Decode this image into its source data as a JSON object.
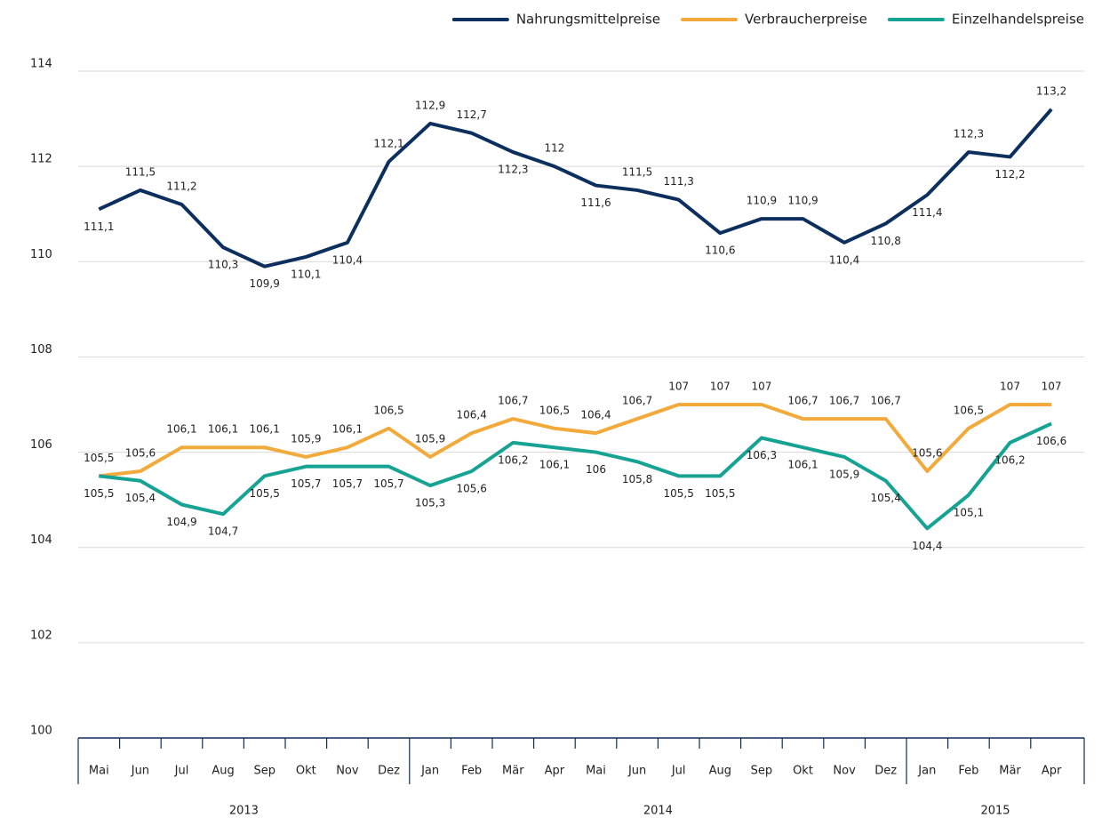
{
  "chart_data": {
    "type": "line",
    "categories": [
      "Mai",
      "Jun",
      "Jul",
      "Aug",
      "Sep",
      "Okt",
      "Nov",
      "Dez",
      "Jan",
      "Feb",
      "Mär",
      "Apr",
      "Mai",
      "Jun",
      "Jul",
      "Aug",
      "Sep",
      "Okt",
      "Nov",
      "Dez",
      "Jan",
      "Feb",
      "Mär",
      "Apr"
    ],
    "category_groups": [
      "2013",
      "2013",
      "2013",
      "2013",
      "2013",
      "2013",
      "2013",
      "2013",
      "2014",
      "2014",
      "2014",
      "2014",
      "2014",
      "2014",
      "2014",
      "2014",
      "2014",
      "2014",
      "2014",
      "2014",
      "2015",
      "2015",
      "2015",
      "2015"
    ],
    "series": [
      {
        "name": "Nahrungsmittelpreise",
        "color": "#0d2f5e",
        "values": [
          111.1,
          111.5,
          111.2,
          110.3,
          109.9,
          110.1,
          110.4,
          112.1,
          112.9,
          112.7,
          112.3,
          112,
          111.6,
          111.5,
          111.3,
          110.6,
          110.9,
          110.9,
          110.4,
          110.8,
          111.4,
          112.3,
          112.2,
          113.2
        ],
        "value_labels": [
          "111,1",
          "111,5",
          "111,2",
          "110,3",
          "109,9",
          "110,1",
          "110,4",
          "112,1",
          "112,9",
          "112,7",
          "112,3",
          "112",
          "111,6",
          "111,5",
          "111,3",
          "110,6",
          "110,9",
          "110,9",
          "110,4",
          "110,8",
          "111,4",
          "112,3",
          "112,2",
          "113,2"
        ]
      },
      {
        "name": "Verbraucherpreise",
        "color": "#f2aa3c",
        "values": [
          105.5,
          105.6,
          106.1,
          106.1,
          106.1,
          105.9,
          106.1,
          106.5,
          105.9,
          106.4,
          106.7,
          106.5,
          106.4,
          106.7,
          107,
          107,
          107,
          106.7,
          106.7,
          106.7,
          105.6,
          106.5,
          107,
          107
        ],
        "value_labels": [
          "105,5",
          "105,6",
          "106,1",
          "106,1",
          "106,1",
          "105,9",
          "106,1",
          "106,5",
          "105,9",
          "106,4",
          "106,7",
          "106,5",
          "106,4",
          "106,7",
          "107",
          "107",
          "107",
          "106,7",
          "106,7",
          "106,7",
          "105,6",
          "106,5",
          "107",
          "107"
        ]
      },
      {
        "name": "Einzelhandelspreise",
        "color": "#17a394",
        "values": [
          105.5,
          105.4,
          104.9,
          104.7,
          105.5,
          105.7,
          105.7,
          105.7,
          105.3,
          105.6,
          106.2,
          106.1,
          106,
          105.8,
          105.5,
          105.5,
          106.3,
          106.1,
          105.9,
          105.4,
          104.4,
          105.1,
          106.2,
          106.6
        ],
        "value_labels": [
          "105,5",
          "105,4",
          "104,9",
          "104,7",
          "105,5",
          "105,7",
          "105,7",
          "105,7",
          "105,3",
          "105,6",
          "106,2",
          "106,1",
          "106",
          "105,8",
          "105,5",
          "105,5",
          "106,3",
          "106,1",
          "105,9",
          "105,4",
          "104,4",
          "105,1",
          "106,2",
          "106,6"
        ]
      }
    ],
    "ylim": [
      100,
      114
    ],
    "yticks": [
      100,
      102,
      104,
      106,
      108,
      110,
      112,
      114
    ],
    "grid": true,
    "legend": "top-right"
  }
}
